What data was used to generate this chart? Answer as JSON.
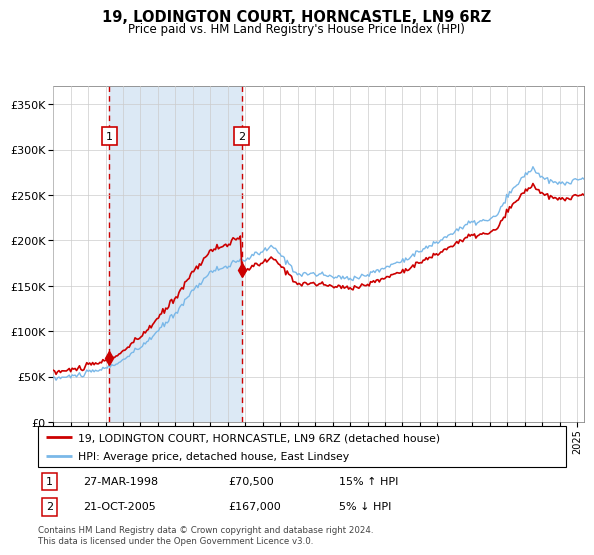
{
  "title": "19, LODINGTON COURT, HORNCASTLE, LN9 6RZ",
  "subtitle": "Price paid vs. HM Land Registry's House Price Index (HPI)",
  "legend_line1": "19, LODINGTON COURT, HORNCASTLE, LN9 6RZ (detached house)",
  "legend_line2": "HPI: Average price, detached house, East Lindsey",
  "transaction1_date": "27-MAR-1998",
  "transaction1_price": "£70,500",
  "transaction1_hpi": "15% ↑ HPI",
  "transaction2_date": "21-OCT-2005",
  "transaction2_price": "£167,000",
  "transaction2_hpi": "5% ↓ HPI",
  "footnote": "Contains HM Land Registry data © Crown copyright and database right 2024.\nThis data is licensed under the Open Government Licence v3.0.",
  "hpi_color": "#7ab8e8",
  "price_color": "#cc0000",
  "annotation_color": "#cc0000",
  "background_fill": "#dce9f5",
  "ylim": [
    0,
    370000
  ],
  "yticks": [
    0,
    50000,
    100000,
    150000,
    200000,
    250000,
    300000,
    350000
  ],
  "start_year": 1995.0,
  "end_year": 2025.4,
  "t1_year": 1998.21,
  "t2_year": 2005.79,
  "price1": 70500,
  "price2": 167000,
  "hpi_waypoints_x": [
    1995,
    1996,
    1997,
    1998,
    1999,
    2000,
    2001,
    2002,
    2003,
    2004,
    2005,
    2006,
    2007,
    2007.5,
    2008,
    2009,
    2010,
    2011,
    2012,
    2013,
    2014,
    2015,
    2016,
    2017,
    2018,
    2019,
    2020,
    2020.5,
    2021,
    2022,
    2022.5,
    2023,
    2024,
    2025.4
  ],
  "hpi_waypoints_y": [
    48000,
    50000,
    54000,
    59000,
    68000,
    82000,
    100000,
    120000,
    145000,
    165000,
    172000,
    179000,
    188000,
    193000,
    185000,
    163000,
    163000,
    160000,
    158000,
    162000,
    170000,
    178000,
    188000,
    198000,
    210000,
    220000,
    222000,
    230000,
    248000,
    272000,
    280000,
    268000,
    262000,
    268000
  ],
  "noise_seed": 10,
  "noise_scale": 1500
}
